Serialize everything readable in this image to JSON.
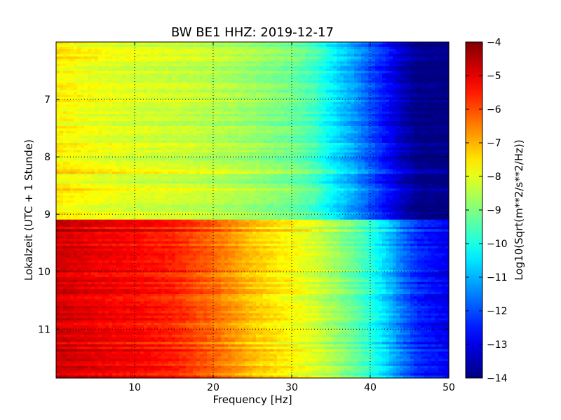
{
  "chart_data": {
    "type": "heatmap",
    "title": "BW BE1 HHZ: 2019-12-17",
    "xlabel": "Frequency [Hz]",
    "ylabel": "Lokalzeit (UTC + 1 Stunde)",
    "colorbar_label": "Log10(Sqrt(m**2/s**2/Hz))",
    "xlim": [
      0,
      50
    ],
    "ylim": [
      6.0,
      11.85
    ],
    "y_inverted": true,
    "x_ticks": [
      10,
      20,
      30,
      40,
      50
    ],
    "y_ticks": [
      7,
      8,
      9,
      10,
      11
    ],
    "color_range": [
      -14,
      -4
    ],
    "colorbar_ticks": [
      -4,
      -5,
      -6,
      -7,
      -8,
      -9,
      -10,
      -11,
      -12,
      -13,
      -14
    ],
    "colormap": "jet",
    "grid": "dotted",
    "regions": [
      {
        "name": "",
        "time_range": [
          6.0,
          9.1
        ],
        "freq_hz": [
          0,
          5,
          10,
          15,
          20,
          25,
          30,
          33,
          35,
          38,
          40,
          42,
          44,
          46,
          50
        ],
        "level": [
          -7.6,
          -7.9,
          -8.1,
          -8.2,
          -8.4,
          -8.7,
          -9.1,
          -9.6,
          -10.3,
          -11.2,
          -11.9,
          -12.6,
          -13.3,
          -13.9,
          -14.0
        ]
      },
      {
        "name": "",
        "time_range": [
          9.1,
          11.85
        ],
        "freq_hz": [
          0,
          5,
          10,
          15,
          20,
          25,
          30,
          33,
          35,
          38,
          40,
          42,
          44,
          46,
          50
        ],
        "level": [
          -4.8,
          -5.1,
          -5.3,
          -5.6,
          -6.3,
          -7.2,
          -7.8,
          -8.2,
          -8.6,
          -9.3,
          -9.9,
          -10.7,
          -11.6,
          -12.4,
          -13.0
        ]
      }
    ]
  }
}
